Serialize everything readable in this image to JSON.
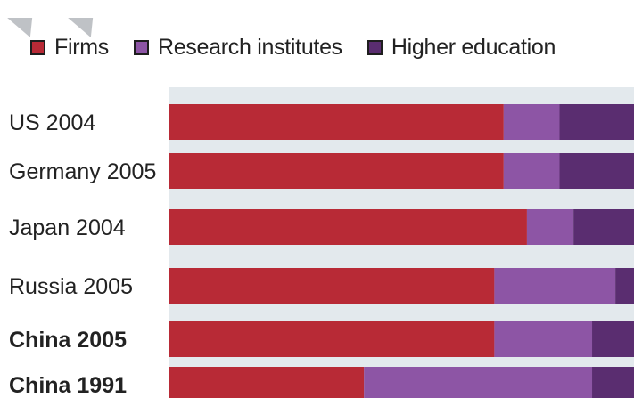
{
  "chart_data": {
    "type": "bar",
    "orientation": "horizontal",
    "stacked": true,
    "normalized_percent": true,
    "categories": [
      "US 2004",
      "Germany 2005",
      "Japan 2004",
      "Russia 2005",
      "China 2005",
      "China 1991"
    ],
    "emphasized_categories": [
      "China 2005",
      "China 1991"
    ],
    "series": [
      {
        "name": "Firms",
        "color": "#b82a36",
        "values": [
          72,
          72,
          77,
          70,
          70,
          42
        ]
      },
      {
        "name": "Research institutes",
        "color": "#8d55a5",
        "values": [
          12,
          12,
          10,
          26,
          21,
          49
        ]
      },
      {
        "name": "Higher education",
        "color": "#5a2d70",
        "values": [
          16,
          16,
          13,
          4,
          9,
          9
        ]
      }
    ],
    "xlim": [
      0,
      100
    ],
    "legend_position": "top",
    "grid": false,
    "background_color": "#e3e9ed"
  }
}
